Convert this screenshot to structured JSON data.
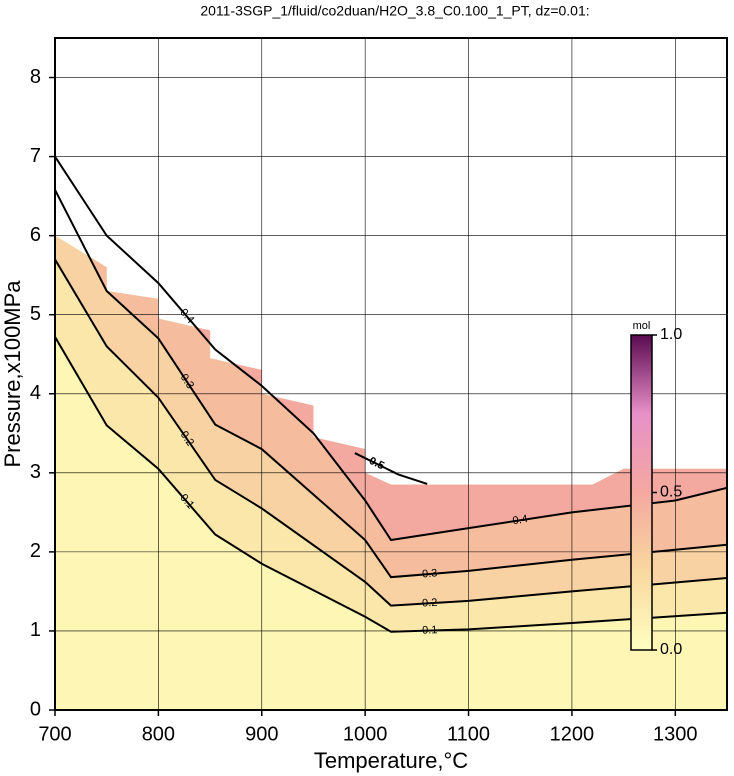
{
  "chart_data": {
    "type": "contour",
    "title": "2011-3SGP_1/fluid/co2duan/H2O_3.8_C0.100_1_PT, dz=0.01:",
    "x_label": "Temperature,°C",
    "y_label": "Pressure,x100MPa",
    "xlim": [
      700,
      1350
    ],
    "ylim": [
      0,
      8.5
    ],
    "xticks": [
      700,
      800,
      900,
      1000,
      1100,
      1200,
      1300
    ],
    "yticks": [
      0,
      1,
      2,
      3,
      4,
      5,
      6,
      7,
      8
    ],
    "grid": true,
    "domain": {
      "color": "#fdf6b4",
      "x": [
        700,
        700,
        750,
        750,
        800,
        800,
        850,
        850,
        900,
        900,
        950,
        950,
        1000,
        1000,
        1025,
        1220,
        1250,
        1350
      ],
      "y": [
        7.25,
        6.0,
        5.6,
        5.3,
        5.2,
        4.95,
        4.8,
        4.45,
        4.3,
        4.0,
        3.85,
        3.45,
        3.3,
        3.0,
        2.85,
        2.85,
        3.05,
        3.05
      ]
    },
    "series": [
      {
        "level": {
          "value": 0.1,
          "label": "0.1"
        },
        "color": "#fbe7aa",
        "x": [
          700,
          750,
          800,
          855,
          900,
          1000,
          1025,
          1100,
          1200,
          1350
        ],
        "y": [
          4.72,
          3.6,
          3.05,
          2.22,
          1.85,
          1.18,
          0.99,
          1.02,
          1.1,
          1.23
        ]
      },
      {
        "level": {
          "value": 0.2,
          "label": "0.2"
        },
        "color": "#f8d2a2",
        "x": [
          700,
          750,
          800,
          855,
          900,
          1000,
          1025,
          1100,
          1200,
          1350
        ],
        "y": [
          5.7,
          4.6,
          3.95,
          2.91,
          2.55,
          1.62,
          1.32,
          1.38,
          1.5,
          1.67
        ]
      },
      {
        "level": {
          "value": 0.3,
          "label": "0.3"
        },
        "color": "#f6bc9e",
        "x": [
          700,
          750,
          800,
          855,
          900,
          1000,
          1025,
          1100,
          1200,
          1350
        ],
        "y": [
          6.58,
          5.3,
          4.7,
          3.61,
          3.3,
          2.15,
          1.68,
          1.76,
          1.9,
          2.09
        ]
      },
      {
        "level": {
          "value": 0.4,
          "label": "0.4"
        },
        "color": "#f4a9a0",
        "x": [
          700,
          750,
          800,
          855,
          900,
          950,
          1000,
          1025,
          1100,
          1200,
          1300,
          1350
        ],
        "y": [
          7.0,
          6.0,
          5.4,
          4.56,
          4.1,
          3.5,
          2.65,
          2.15,
          2.3,
          2.5,
          2.65,
          2.81
        ]
      },
      {
        "level": {
          "value": 0.5,
          "label": "0.5"
        },
        "x": [
          990,
          1032,
          1060
        ],
        "y": [
          3.25,
          2.98,
          2.86
        ]
      }
    ],
    "colorbar": {
      "label": "mol",
      "lim": [
        0,
        1
      ],
      "colors": [
        "#ffffc0",
        "#f8d8a0",
        "#f4a8a0",
        "#e890c8",
        "#5a0a50"
      ],
      "ticks": [
        {
          "value": 0,
          "label": "0.0"
        },
        {
          "value": 0.5,
          "label": "0.5"
        },
        {
          "value": 1,
          "label": "1.0"
        }
      ]
    }
  }
}
